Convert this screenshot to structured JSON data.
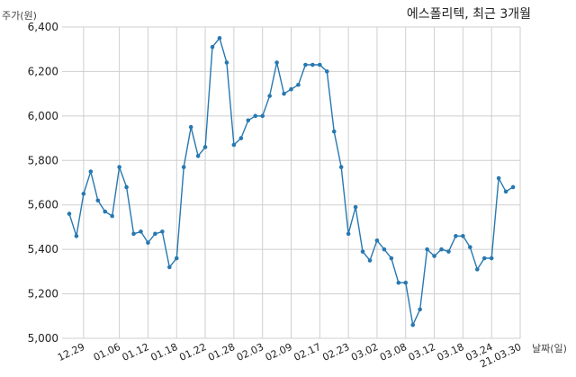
{
  "chart_data": {
    "type": "line",
    "title": "에스폴리텍, 최근 3개월",
    "ylabel": "주가(원)",
    "xlabel": "날짜(일)",
    "ylim": [
      5000,
      6400
    ],
    "yticks": [
      5000,
      5200,
      5400,
      5600,
      5800,
      6000,
      6200,
      6400
    ],
    "ytick_labels": [
      "5,000",
      "5,200",
      "5,400",
      "5,600",
      "5,800",
      "6,000",
      "6,200",
      "6,400"
    ],
    "xtick_labels": [
      "12.29",
      "01.06",
      "01.12",
      "01.18",
      "01.22",
      "01.28",
      "02.03",
      "02.09",
      "02.17",
      "02.23",
      "03.02",
      "03.08",
      "03.12",
      "03.18",
      "03.24",
      "21.03.30"
    ],
    "xtick_indices": [
      2,
      7,
      11,
      15,
      19,
      23,
      27,
      31,
      35,
      39,
      43,
      47,
      51,
      55,
      59,
      63
    ],
    "grid": true,
    "color": "#2878b0",
    "values": [
      5560,
      5460,
      5650,
      5750,
      5620,
      5570,
      5550,
      5770,
      5680,
      5470,
      5480,
      5430,
      5470,
      5480,
      5320,
      5360,
      5770,
      5950,
      5820,
      5860,
      6310,
      6350,
      6240,
      5870,
      5900,
      5980,
      6000,
      6000,
      6090,
      6240,
      6100,
      6120,
      6140,
      6230,
      6230,
      6230,
      6200,
      5930,
      5770,
      5470,
      5590,
      5390,
      5350,
      5440,
      5400,
      5360,
      5250,
      5250,
      5060,
      5130,
      5400,
      5370,
      5400,
      5390,
      5460,
      5460,
      5410,
      5310,
      5360,
      5360,
      5720,
      5660,
      5680
    ]
  }
}
